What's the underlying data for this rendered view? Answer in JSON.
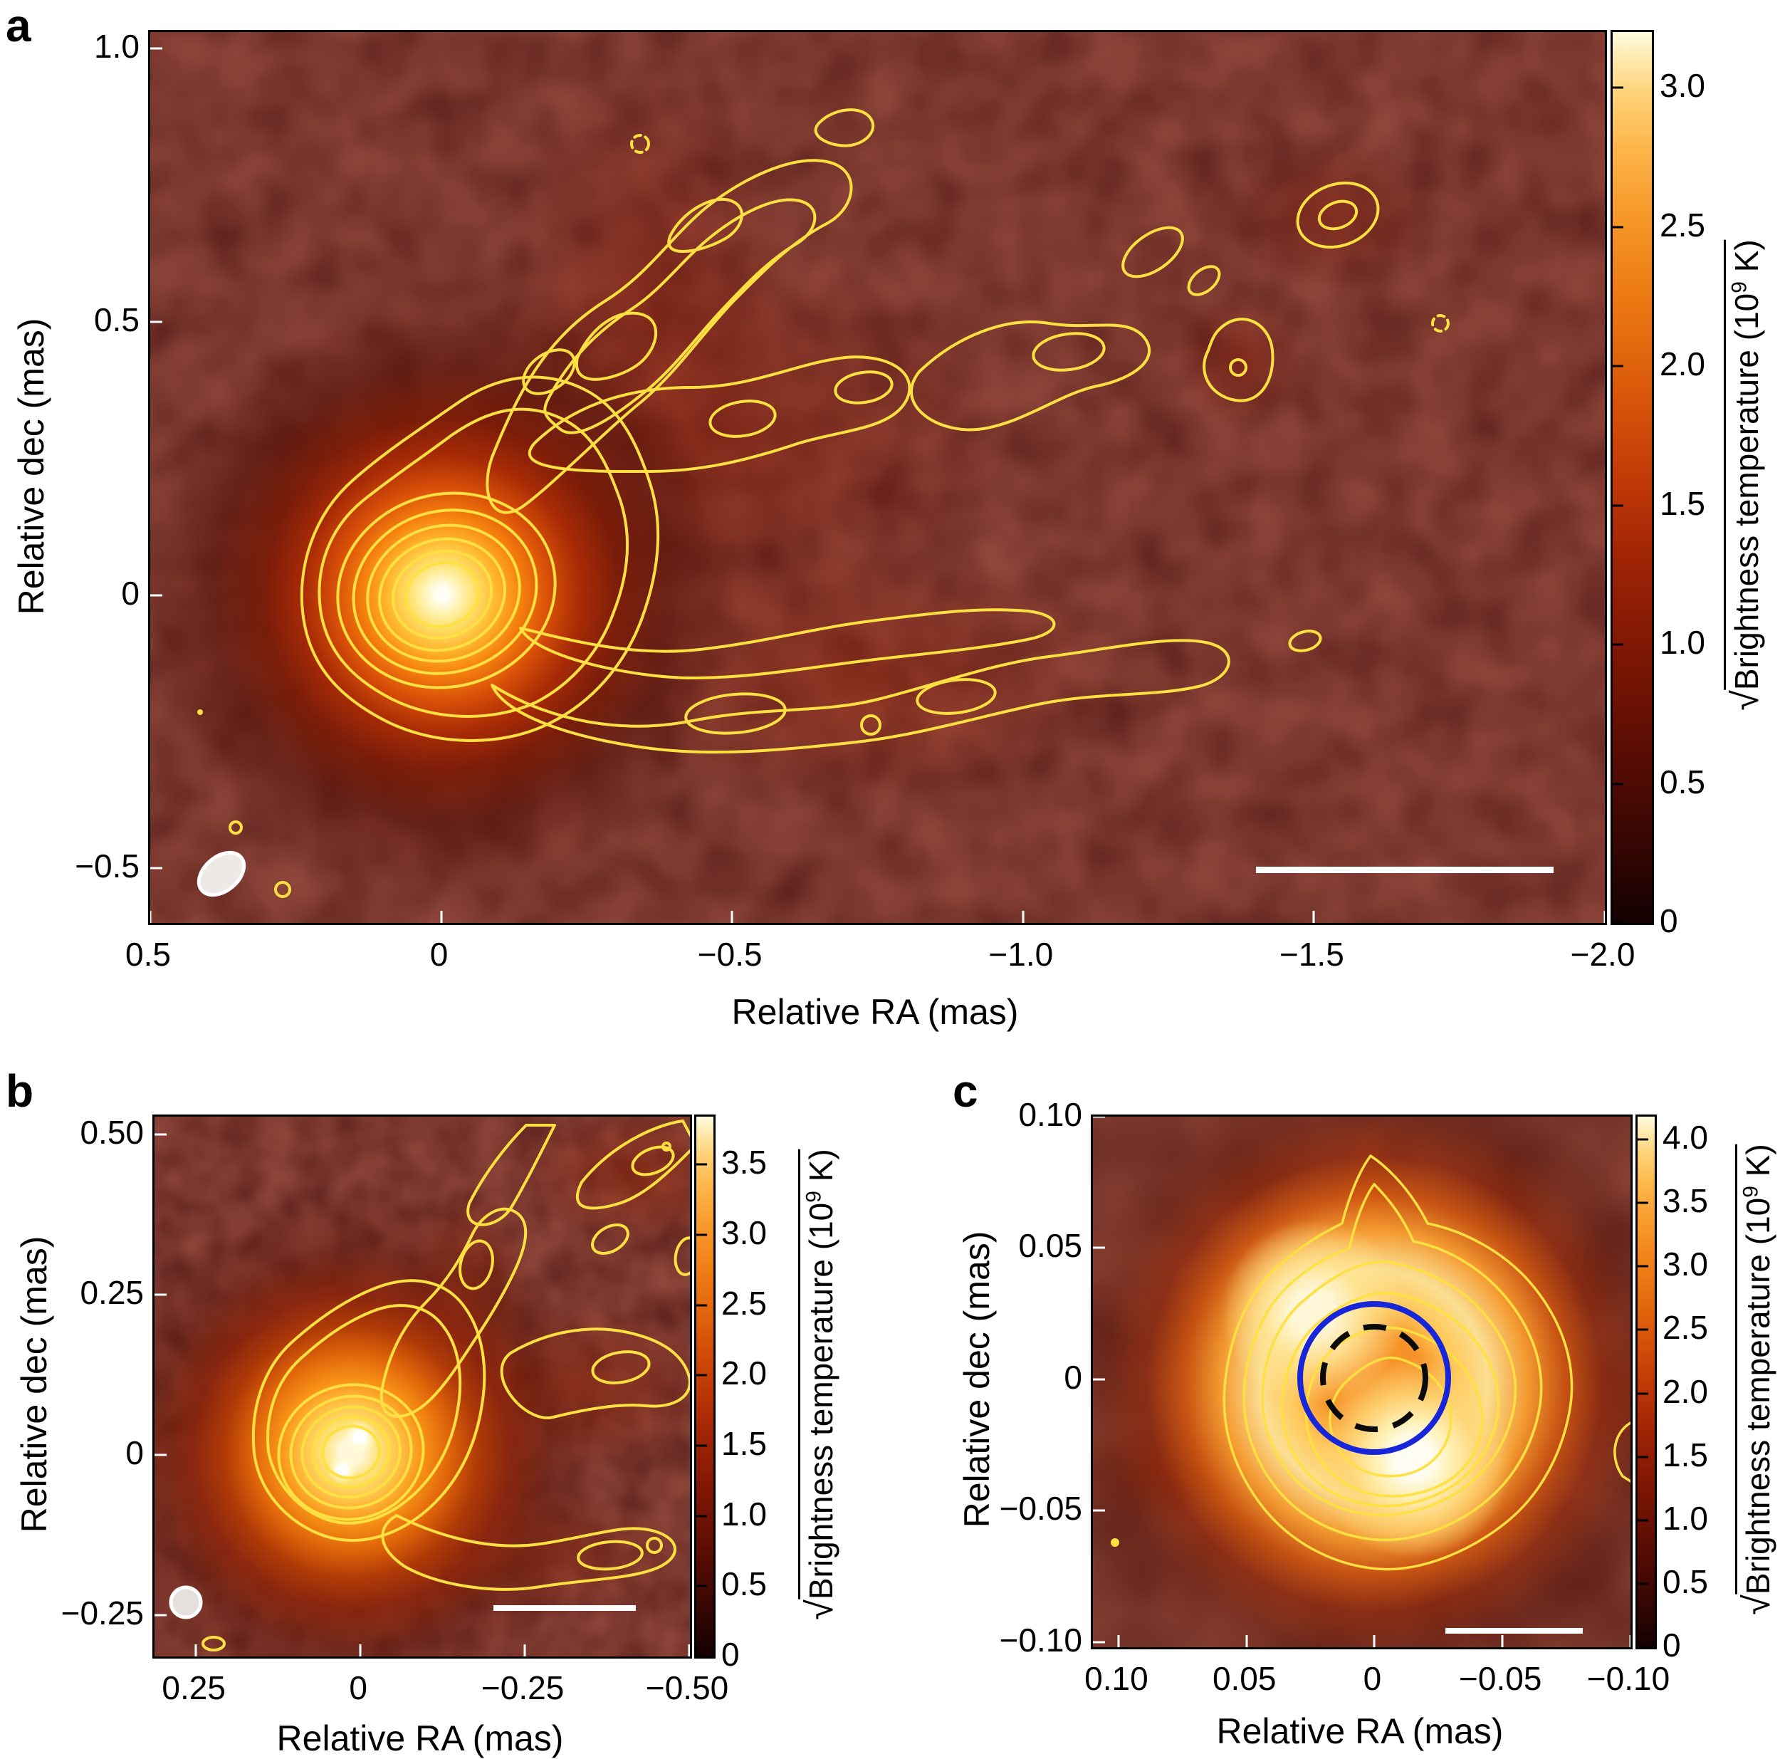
{
  "chart_data": [
    {
      "panel": "a",
      "type": "heatmap",
      "panel_label": "a",
      "xlabel": "Relative RA (mas)",
      "ylabel": "Relative dec (mas)",
      "xlim": [
        0.5,
        -2.0
      ],
      "ylim": [
        -0.6,
        1.03
      ],
      "x_ticks": {
        "values": [
          0.5,
          0,
          -0.5,
          -1.0,
          -1.5,
          -2.0
        ],
        "labels": [
          "0.5",
          "0",
          "−0.5",
          "−1.0",
          "−1.5",
          "−2.0"
        ]
      },
      "y_ticks": {
        "values": [
          1.0,
          0.5,
          0,
          -0.5
        ],
        "labels": [
          "1.0",
          "0.5",
          "0",
          "−0.5"
        ]
      },
      "colorbar": {
        "min": 0,
        "max": 3.2,
        "tick_values": [
          3.0,
          2.5,
          2.0,
          1.5,
          1.0,
          0.5,
          0
        ],
        "tick_labels": [
          "3.0",
          "2.5",
          "2.0",
          "1.5",
          "1.0",
          "0.5",
          "0"
        ],
        "label": {
          "sqrt": "√",
          "text": "Brightness temperature (10",
          "sup": "9",
          "tail": " K)"
        }
      },
      "colormap": "hot (black-red-orange-yellow-white)",
      "colormap_stops": [
        "#140101",
        "#5c0d03",
        "#9c2205",
        "#d14c08",
        "#ef7f16",
        "#fdb54b",
        "#ffe9ae",
        "#fffbe0"
      ],
      "contour_color": "#ffe042",
      "features": {
        "core": {
          "ra_mas": 0,
          "dec_mas": 0,
          "peak_sqrt_brightness_temp_1e9K": 3.2
        },
        "morphology": "compact bright core at origin with limb-brightened jet fanning toward negative RA (up to about -1.5 mas) traced by nested yellow contours and isolated contour islands",
        "beam_ellipse": "white restoring-beam ellipse at bottom left",
        "scale_bar": "white horizontal scale bar at bottom right, length ~0.5 mas"
      }
    },
    {
      "panel": "b",
      "type": "heatmap",
      "panel_label": "b",
      "xlabel": "Relative RA (mas)",
      "ylabel": "Relative dec (mas)",
      "xlim": [
        0.313,
        -0.501
      ],
      "ylim": [
        -0.314,
        0.528
      ],
      "x_ticks": {
        "values": [
          0.25,
          0,
          -0.25,
          -0.5
        ],
        "labels": [
          "0.25",
          "0",
          "−0.25",
          "−0.50"
        ]
      },
      "y_ticks": {
        "values": [
          0.5,
          0.25,
          0,
          -0.25
        ],
        "labels": [
          "0.50",
          "0.25",
          "0",
          "−0.25"
        ]
      },
      "colorbar": {
        "min": 0,
        "max": 3.84,
        "tick_values": [
          3.5,
          3.0,
          2.5,
          2.0,
          1.5,
          1.0,
          0.5,
          0
        ],
        "tick_labels": [
          "3.5",
          "3.0",
          "2.5",
          "2.0",
          "1.5",
          "1.0",
          "0.5",
          "0"
        ],
        "label": {
          "sqrt": "√",
          "text": "Brightness temperature (10",
          "sup": "9",
          "tail": " K)"
        }
      },
      "colormap": "hot (black-red-orange-yellow-white)",
      "colormap_stops": [
        "#140101",
        "#5c0d03",
        "#9c2205",
        "#d14c08",
        "#ef7f16",
        "#fdb54b",
        "#ffe9ae",
        "#fffbe0"
      ],
      "contour_color": "#ffe042",
      "features": {
        "core": {
          "ra_mas": 0.02,
          "dec_mas": 0,
          "peak_sqrt_brightness_temp_1e9K": 3.84,
          "double_peak": true
        },
        "morphology": "zoom on the core region; two bright sub-peaks inside nested contours, filamentary loops extending to the north and toward negative RA",
        "beam_ellipse": "small white circular beam at bottom left",
        "scale_bar": "white horizontal scale bar at bottom right"
      }
    },
    {
      "panel": "c",
      "type": "heatmap",
      "panel_label": "c",
      "xlabel": "Relative RA (mas)",
      "ylabel": "Relative dec (mas)",
      "xlim": [
        0.11,
        -0.1
      ],
      "ylim": [
        -0.102,
        0.1
      ],
      "x_ticks": {
        "values": [
          0.1,
          0.05,
          0,
          -0.05,
          -0.1
        ],
        "labels": [
          "0.10",
          "0.05",
          "0",
          "−0.05",
          "−0.10"
        ]
      },
      "y_ticks": {
        "values": [
          0.1,
          0.05,
          0,
          -0.05,
          -0.1
        ],
        "labels": [
          "0.10",
          "0.05",
          "0",
          "−0.05",
          "−0.10"
        ]
      },
      "colorbar": {
        "min": 0,
        "max": 4.18,
        "tick_values": [
          4.0,
          3.5,
          3.0,
          2.5,
          2.0,
          1.5,
          1.0,
          0.5,
          0
        ],
        "tick_labels": [
          "4.0",
          "3.5",
          "3.0",
          "2.5",
          "2.0",
          "1.5",
          "1.0",
          "0.5",
          "0"
        ],
        "label": {
          "sqrt": "√",
          "text": "Brightness temperature (10",
          "sup": "9",
          "tail": " K)"
        }
      },
      "colormap": "hot (black-red-orange-yellow-white)",
      "colormap_stops": [
        "#140101",
        "#5c0d03",
        "#9c2205",
        "#d14c08",
        "#ef7f16",
        "#fdb54b",
        "#ffe9ae",
        "#fffbe0"
      ],
      "contour_color": "#ffe042",
      "overlays": {
        "blue_circle": {
          "center_ra_mas": 0,
          "center_dec_mas": 0,
          "radius_mas": 0.029,
          "color": "#1626d8",
          "style": "solid"
        },
        "dashed_circle": {
          "center_ra_mas": 0,
          "center_dec_mas": 0,
          "radius_mas": 0.02,
          "color": "#0a0a0a",
          "style": "dashed"
        }
      },
      "features": {
        "core": {
          "peak_sqrt_brightness_temp_1e9K": 4.18
        },
        "morphology": "deep zoom on the core: ring-like brightness distribution, brightest to the south and north-west of centre, slightly darker centre inside the dashed circle, faint spur extending north",
        "scale_bar": "white horizontal scale bar at bottom right, length ~0.05 mas"
      }
    }
  ]
}
